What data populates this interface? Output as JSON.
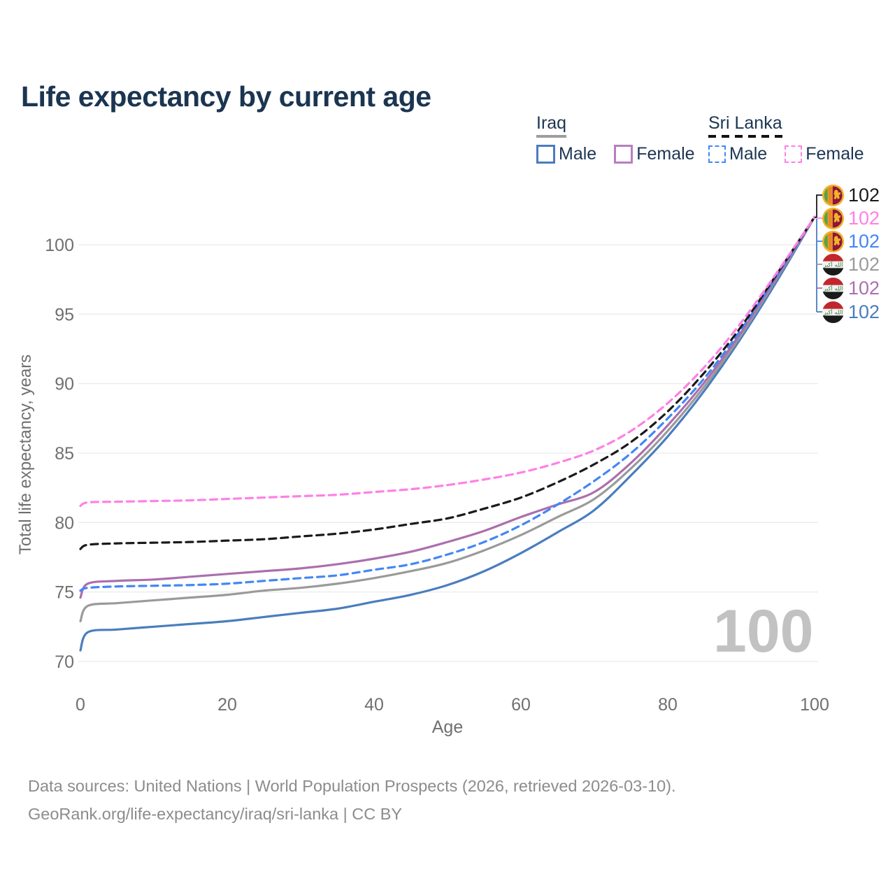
{
  "title": "Life expectancy by current age",
  "watermark": "100",
  "legend": {
    "groups": [
      {
        "label": "Iraq",
        "line_style": "solid",
        "items": [
          {
            "label": "Male",
            "color": "#4a7dbf"
          },
          {
            "label": "Female",
            "color": "#b77fbe"
          }
        ]
      },
      {
        "label": "Sri Lanka",
        "line_style": "dashed",
        "items": [
          {
            "label": "Male",
            "color": "#4287f5"
          },
          {
            "label": "Female",
            "color": "#ff80e5"
          }
        ]
      }
    ]
  },
  "axes": {
    "x": {
      "label": "Age",
      "ticks": [
        0,
        20,
        40,
        60,
        80,
        100
      ]
    },
    "y": {
      "label": "Total life expectancy, years",
      "ticks": [
        70,
        75,
        80,
        85,
        90,
        95,
        100
      ]
    }
  },
  "annotations": [
    {
      "flag": "sri-lanka",
      "series": "Sri Lanka Both sexes",
      "value": "102",
      "color": "#1a1a1a"
    },
    {
      "flag": "sri-lanka",
      "series": "Sri Lanka Female",
      "value": "102",
      "color": "#ff80e5"
    },
    {
      "flag": "sri-lanka",
      "series": "Sri Lanka Male",
      "value": "102",
      "color": "#4287f5"
    },
    {
      "flag": "iraq",
      "series": "Iraq Both sexes",
      "value": "102",
      "color": "#9a9a9a"
    },
    {
      "flag": "iraq",
      "series": "Iraq Female",
      "value": "102",
      "color": "#ab6fae"
    },
    {
      "flag": "iraq",
      "series": "Iraq Male",
      "value": "102",
      "color": "#4a7dbf"
    }
  ],
  "footer": {
    "line1": "Data sources: United Nations | World Population Prospects (2026, retrieved 2026-03-10).",
    "line2": "GeoRank.org/life-expectancy/iraq/sri-lanka | CC BY"
  },
  "chart_data": {
    "type": "line",
    "title": "Life expectancy by current age",
    "xlabel": "Age",
    "ylabel": "Total life expectancy, years",
    "xlim": [
      0,
      100
    ],
    "ylim": [
      70,
      102
    ],
    "grid": true,
    "x": [
      0,
      1,
      5,
      10,
      15,
      20,
      25,
      30,
      35,
      40,
      45,
      50,
      55,
      60,
      65,
      70,
      75,
      80,
      85,
      90,
      95,
      100
    ],
    "series": [
      {
        "name": "Iraq Male",
        "country": "Iraq",
        "sex": "Male",
        "color": "#4a7dbf",
        "dash": false,
        "values": [
          70.8,
          72.1,
          72.3,
          72.5,
          72.7,
          72.9,
          73.2,
          73.5,
          73.8,
          74.3,
          74.8,
          75.5,
          76.5,
          77.8,
          79.3,
          80.9,
          83.4,
          86.2,
          89.5,
          93.3,
          97.5,
          102
        ]
      },
      {
        "name": "Iraq Both sexes",
        "country": "Iraq",
        "sex": "Both",
        "color": "#9a9a9a",
        "dash": false,
        "values": [
          72.9,
          74.0,
          74.2,
          74.4,
          74.6,
          74.8,
          75.1,
          75.3,
          75.6,
          76.0,
          76.5,
          77.1,
          78.0,
          79.1,
          80.4,
          81.7,
          83.9,
          86.6,
          89.8,
          93.5,
          97.7,
          102
        ]
      },
      {
        "name": "Iraq Female",
        "country": "Iraq",
        "sex": "Female",
        "color": "#ab6fae",
        "dash": false,
        "values": [
          74.6,
          75.6,
          75.8,
          75.9,
          76.1,
          76.3,
          76.5,
          76.7,
          77.0,
          77.4,
          77.9,
          78.6,
          79.4,
          80.4,
          81.3,
          82.2,
          84.3,
          87.0,
          90.1,
          93.7,
          97.8,
          102
        ]
      },
      {
        "name": "Sri Lanka Male",
        "country": "Sri Lanka",
        "sex": "Male",
        "color": "#4287f5",
        "dash": true,
        "values": [
          75.1,
          75.3,
          75.4,
          75.45,
          75.5,
          75.6,
          75.8,
          76.0,
          76.2,
          76.6,
          77.0,
          77.7,
          78.6,
          79.8,
          81.3,
          83.0,
          85.0,
          87.5,
          90.4,
          93.9,
          97.9,
          102
        ]
      },
      {
        "name": "Sri Lanka Both sexes",
        "country": "Sri Lanka",
        "sex": "Both",
        "color": "#1a1a1a",
        "dash": true,
        "values": [
          78.1,
          78.4,
          78.5,
          78.55,
          78.6,
          78.7,
          78.8,
          79.0,
          79.2,
          79.5,
          79.9,
          80.3,
          81.0,
          81.8,
          82.9,
          84.2,
          85.8,
          88.0,
          90.8,
          94.1,
          98.0,
          102
        ]
      },
      {
        "name": "Sri Lanka Female",
        "country": "Sri Lanka",
        "sex": "Female",
        "color": "#ff80e5",
        "dash": true,
        "values": [
          81.2,
          81.45,
          81.5,
          81.55,
          81.6,
          81.7,
          81.8,
          81.9,
          82.0,
          82.2,
          82.4,
          82.7,
          83.1,
          83.6,
          84.3,
          85.2,
          86.6,
          88.6,
          91.2,
          94.4,
          98.1,
          102
        ]
      }
    ]
  }
}
